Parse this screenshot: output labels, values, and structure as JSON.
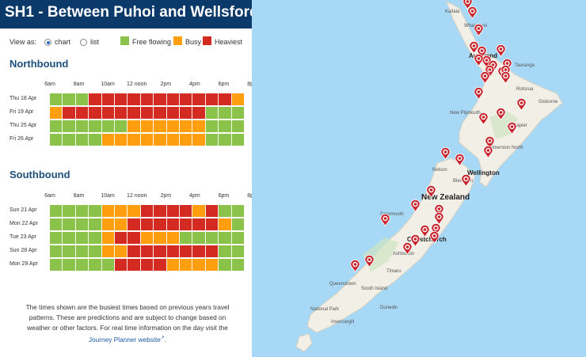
{
  "title": "SH1 - Between Puhoi and Wellsford",
  "view": {
    "label": "View as:",
    "options": [
      {
        "label": "chart",
        "selected": true
      },
      {
        "label": "list",
        "selected": false
      }
    ]
  },
  "legend": [
    {
      "label": "Free flowing",
      "color": "#8bc34a"
    },
    {
      "label": "Busy",
      "color": "#ff9f0f"
    },
    {
      "label": "Heaviest",
      "color": "#d32a21"
    }
  ],
  "colors": {
    "G": "#8bc34a",
    "O": "#ff9f0f",
    "R": "#d32a21"
  },
  "time_ticks": [
    "6am",
    "8am",
    "10am",
    "12 noon",
    "2pm",
    "4pm",
    "6pm",
    "8pm"
  ],
  "northbound": {
    "title": "Northbound",
    "rows": [
      {
        "label": "Thu 18 Apr",
        "cells": "GGGRRRRRRRRRRRO"
      },
      {
        "label": "Fri 19 Apr",
        "cells": "ORRRRRRRRRRRGGG"
      },
      {
        "label": "Thu 25 Apr",
        "cells": "GGGGGGOOOOOOGGG"
      },
      {
        "label": "Fri 26 Apr",
        "cells": "GGGGOOOOOOOOGGG"
      }
    ]
  },
  "southbound": {
    "title": "Southbound",
    "rows": [
      {
        "label": "Sun 21 Apr",
        "cells": "GGGGOOORRRRORGG"
      },
      {
        "label": "Mon 22 Apr",
        "cells": "GGGGOORRRRRRROG"
      },
      {
        "label": "Tue 23 Apr",
        "cells": "GGGGORROOOGGGGG"
      },
      {
        "label": "Sun 28 Apr",
        "cells": "GGGGOORRRRRRRGG"
      },
      {
        "label": "Mon 29 Apr",
        "cells": "GGGGGRRRROOOOGG"
      }
    ]
  },
  "note": {
    "text": "The times shown are the busiest times based on previous years travel patterns. These are predictions and are subject to change based on weather or other factors. For real time information on the day visit the ",
    "link": "Journey Planner website",
    "suffix": "."
  },
  "map": {
    "labels": {
      "auckland": "Auckland",
      "tauranga": "Tauranga",
      "rotorua": "Rotorua",
      "gisborne": "Gisborne",
      "new_plymouth": "New Plymouth",
      "napier": "Napier",
      "palmerston_north": "Palmerston North",
      "wellington": "Wellington",
      "nelson": "Nelson",
      "blenheim": "Blenheim",
      "new_zealand": "New Zealand",
      "greymouth": "Greymouth",
      "christchurch": "Christchurch",
      "ashburton": "Ashburton",
      "timaru": "Timaru",
      "dunedin": "Dunedin",
      "queenstown": "Queenstown",
      "invercargill": "Invercargill",
      "south_island": "South Island",
      "national_park": "National Park",
      "kaitaia": "Kaitaia",
      "whangarei": "Whangarei"
    },
    "marker_count": 37
  }
}
